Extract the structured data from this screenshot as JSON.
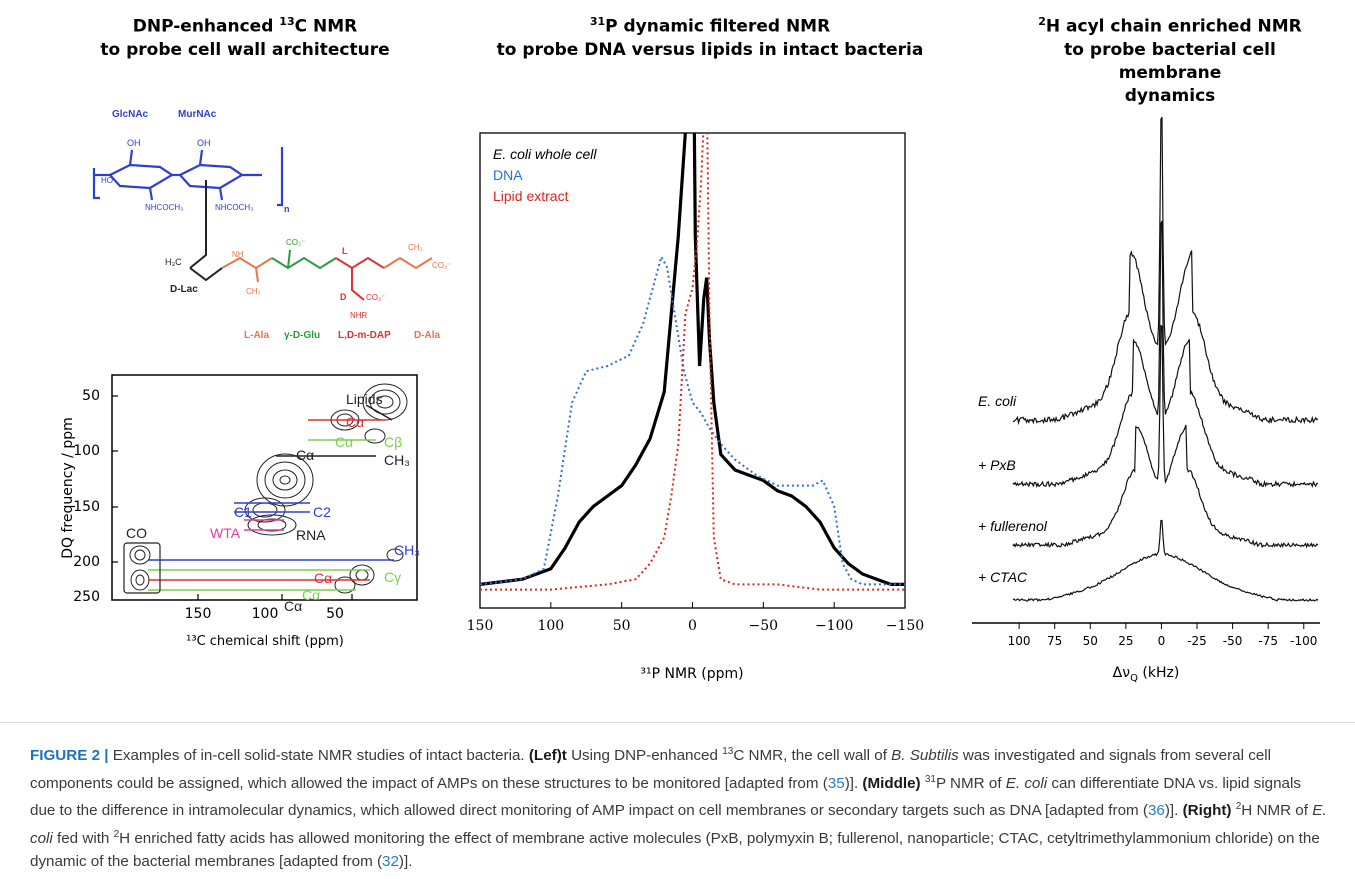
{
  "titles": {
    "left": {
      "line1_pre": "DNP-enhanced ",
      "line1_sup": "13",
      "line1_post": "C NMR",
      "line2": "to probe cell wall architecture"
    },
    "middle": {
      "line1_sup": "31",
      "line1_post": "P dynamic filtered NMR",
      "line2": "to probe DNA versus lipids in intact bacteria"
    },
    "right": {
      "line1_sup": "2",
      "line1_post": "H acyl chain enriched NMR",
      "line2": "to probe bacterial cell membrane",
      "line3": "dynamics"
    }
  },
  "structure": {
    "glcnac": "GlcNAc",
    "murnac": "MurNAc",
    "nhcoch3_1": "NHCOCH₃",
    "nhcoch3_2": "NHCOCH₃",
    "oh1": "OH",
    "oh2": "OH",
    "ho": "HO",
    "n": "n",
    "h3c": "H₃C",
    "dlac": "D-Lac",
    "co2_1": "CO₂⁻",
    "co2_2": "CO₂⁻",
    "co2_3": "CO₂⁻",
    "ch3_1": "CH₃",
    "ch3_2": "CH₃",
    "l": "L",
    "d": "D",
    "nhr": "NHR",
    "nh": "NH",
    "lala": "L-Ala",
    "gdglu": "γ-D-Glu",
    "ldmdap": "L,D-m-DAP",
    "dala": "D-Ala"
  },
  "left_plot": {
    "ylabel": "DQ frequency / ppm",
    "xlabel": "¹³C chemical shift (ppm)",
    "yticks": [
      "50",
      "100",
      "150",
      "200",
      "250"
    ],
    "xticks": [
      "150",
      "100",
      "50"
    ],
    "labels": {
      "lipids": "Lipids",
      "ca1": "Cα",
      "ca2": "Cα",
      "cb": "Cβ",
      "ca3": "Cα",
      "ch3a": "CH₃",
      "c1": "C1",
      "c2": "C2",
      "wta": "WTA",
      "rna": "RNA",
      "co": "CO",
      "ch3b": "CH₃",
      "cy": "Cγ",
      "ca4": "Cα",
      "ca5": "Cα",
      "ca6": "Cα"
    }
  },
  "chart_data": {
    "type": "line",
    "title": "³¹P dynamic filtered NMR",
    "xlabel": "³¹P NMR (ppm)",
    "ylabel": "",
    "xlim": [
      150,
      -150
    ],
    "xticks": [
      "150",
      "100",
      "50",
      "0",
      "-50",
      "-100",
      "-150"
    ],
    "series": [
      {
        "name": "E. coli whole cell",
        "color": "#000000",
        "x": [
          150,
          120,
          100,
          90,
          80,
          70,
          60,
          50,
          40,
          30,
          20,
          10,
          5,
          2,
          0,
          -2,
          -5,
          -8,
          -10,
          -12,
          -15,
          -20,
          -30,
          -40,
          -50,
          -60,
          -70,
          -80,
          -90,
          -100,
          -110,
          -120,
          -130,
          -140,
          -150
        ],
        "y": [
          0.03,
          0.04,
          0.06,
          0.1,
          0.15,
          0.18,
          0.2,
          0.22,
          0.26,
          0.31,
          0.4,
          0.7,
          0.9,
          1.1,
          1.3,
          0.7,
          0.45,
          0.58,
          0.62,
          0.5,
          0.38,
          0.28,
          0.25,
          0.24,
          0.23,
          0.21,
          0.2,
          0.18,
          0.15,
          0.1,
          0.07,
          0.05,
          0.04,
          0.03,
          0.03
        ]
      },
      {
        "name": "DNA",
        "color": "#2a6fd6",
        "x": [
          150,
          120,
          105,
          95,
          85,
          75,
          60,
          45,
          35,
          28,
          22,
          18,
          12,
          6,
          0,
          -6,
          -12,
          -20,
          -30,
          -45,
          -60,
          -75,
          -85,
          -92,
          -100,
          -106,
          -112,
          -120,
          -150
        ],
        "y": [
          0.03,
          0.04,
          0.06,
          0.2,
          0.38,
          0.44,
          0.45,
          0.47,
          0.53,
          0.6,
          0.66,
          0.64,
          0.54,
          0.44,
          0.38,
          0.36,
          0.33,
          0.3,
          0.27,
          0.24,
          0.22,
          0.22,
          0.22,
          0.23,
          0.18,
          0.07,
          0.04,
          0.03,
          0.03
        ]
      },
      {
        "name": "Lipid extract",
        "color": "#e0231c",
        "x": [
          150,
          100,
          60,
          40,
          30,
          20,
          15,
          10,
          5,
          0,
          -3,
          -6,
          -8,
          -10,
          -12,
          -15,
          -20,
          -30,
          -60,
          -90,
          -120,
          -150
        ],
        "y": [
          0.02,
          0.02,
          0.03,
          0.04,
          0.07,
          0.12,
          0.2,
          0.3,
          0.55,
          0.6,
          0.68,
          0.8,
          0.92,
          1.0,
          0.55,
          0.12,
          0.04,
          0.03,
          0.03,
          0.02,
          0.02,
          0.02
        ]
      }
    ],
    "legend": "top-left"
  },
  "right_plot": {
    "xlabel": "Δν",
    "xlabel_sub": "Q",
    "xlabel_unit": " (kHz)",
    "xticks": [
      "100",
      "75",
      "50",
      "25",
      "0",
      "-25",
      "-50",
      "-75",
      "-100"
    ],
    "spectra": [
      {
        "label": "E. coli",
        "quadrupolar_splitting_khz": 22,
        "width_khz": 72
      },
      {
        "label": "+ PxB",
        "quadrupolar_splitting_khz": 20,
        "width_khz": 70
      },
      {
        "label": "+ fullerenol",
        "quadrupolar_splitting_khz": 18,
        "width_khz": 68
      },
      {
        "label": "+ CTAC",
        "quadrupolar_splitting_khz": 0,
        "width_khz": 80
      }
    ]
  },
  "caption": {
    "fig": "FIGURE 2 |",
    "t1": " Examples of in-cell solid-state NMR studies of intact bacteria. ",
    "left": "(Lef)t",
    "t2": " Using DNP-enhanced ",
    "sup13": "13",
    "t3": "C NMR, the cell wall of ",
    "bsub": "B. Subtilis",
    "t4": " was investigated and signals from several cell components could be assigned, which allowed the impact of AMPs on these structures to be monitored [adapted from (",
    "ref35": "35",
    "t5": ")]. ",
    "middle": "(Middle)",
    "sup31": "31",
    "t6": "P NMR of ",
    "ecoli1": "E. coli",
    "t7": " can differentiate DNA vs. lipid signals due to the difference in intramolecular dynamics, which allowed direct monitoring of AMP impact on cell membranes or secondary targets such as DNA [adapted from (",
    "ref36": "36",
    "t8": ")]. ",
    "right": "(Right)",
    "sup2a": "2",
    "t9": "H NMR of ",
    "ecoli2": "E. coli",
    "t10": " fed with ",
    "sup2b": "2",
    "t11": "H enriched fatty acids has allowed monitoring the effect of membrane active molecules (PxB, polymyxin B; fullerenol, nanoparticle; CTAC, cetyltrimethylammonium chloride) on the dynamic of the bacterial membranes [adapted from (",
    "ref32": "32",
    "t12": ")]."
  }
}
